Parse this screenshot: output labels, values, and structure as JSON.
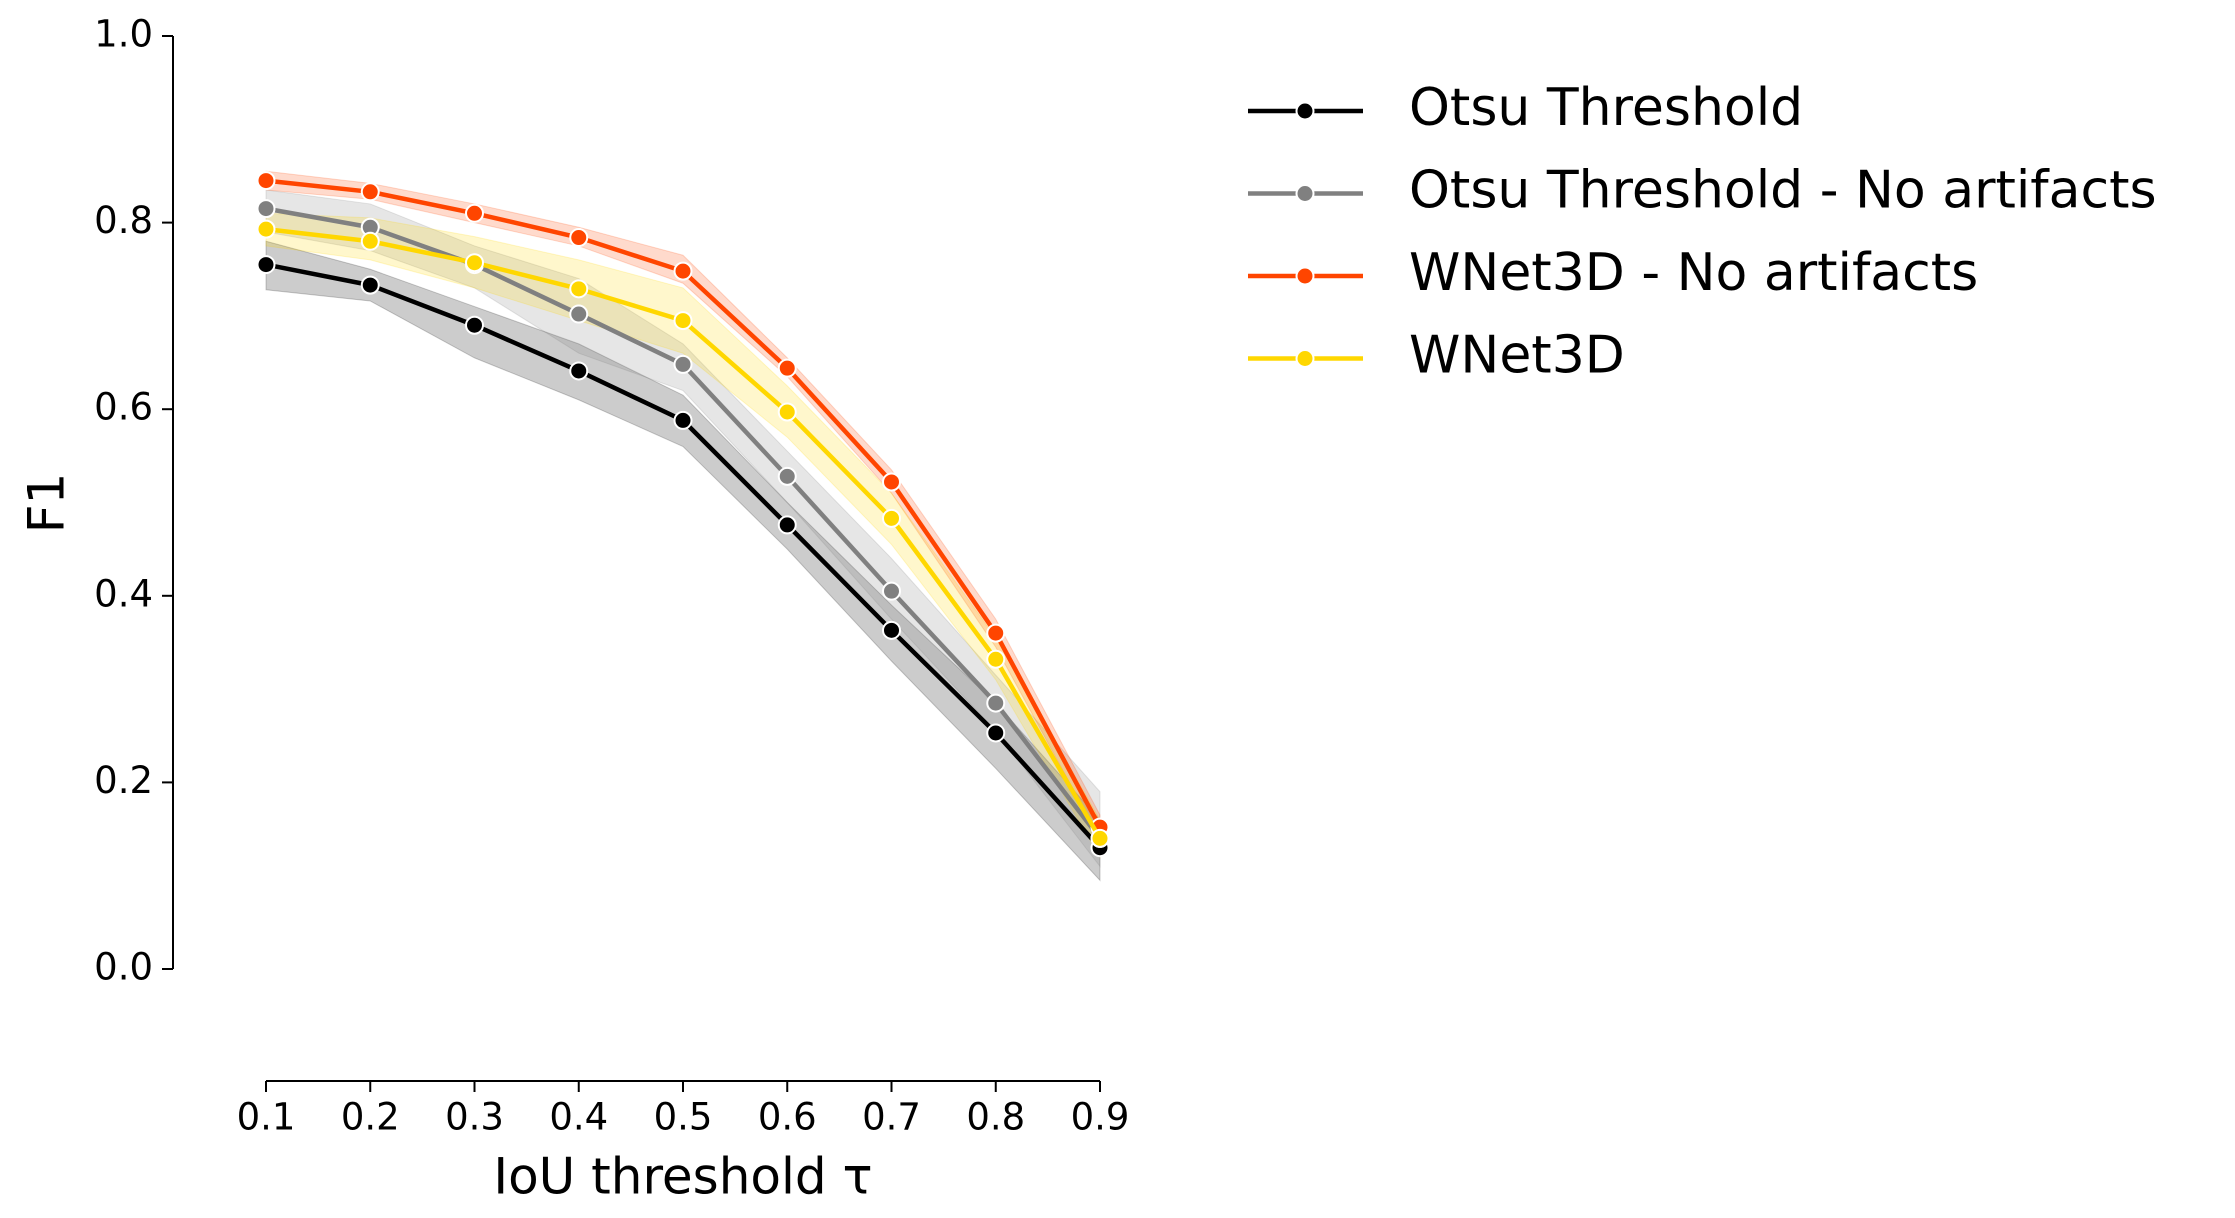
{
  "chart_data": {
    "type": "line",
    "x_label": "IoU threshold τ",
    "y_label": "F1",
    "x": [
      0.1,
      0.2,
      0.3,
      0.4,
      0.5,
      0.6,
      0.7,
      0.8,
      0.9
    ],
    "xlim": [
      0.1,
      0.9
    ],
    "xticks": [
      0.1,
      0.2,
      0.3,
      0.4,
      0.5,
      0.6,
      0.7,
      0.8,
      0.9
    ],
    "ylim": [
      0.0,
      1.0
    ],
    "yticks": [
      {
        "value": 0,
        "label": "0.0"
      },
      0.2,
      0.4,
      0.6,
      0.8,
      {
        "value": 1,
        "label": "1.0"
      }
    ],
    "legend": "outside-right",
    "series": [
      {
        "name": "Otsu Threshold",
        "color": "#000000",
        "values": [
          0.755,
          0.733,
          0.69,
          0.641,
          0.588,
          0.476,
          0.363,
          0.253,
          0.13
        ],
        "lower": [
          0.728,
          0.716,
          0.655,
          0.61,
          0.56,
          0.45,
          0.33,
          0.215,
          0.095
        ],
        "upper": [
          0.78,
          0.75,
          0.71,
          0.67,
          0.615,
          0.5,
          0.39,
          0.285,
          0.16
        ]
      },
      {
        "name": "Otsu Threshold - No artifacts",
        "color": "#808080",
        "values": [
          0.815,
          0.795,
          0.755,
          0.702,
          0.648,
          0.528,
          0.405,
          0.285,
          0.14
        ],
        "lower": [
          0.79,
          0.77,
          0.73,
          0.66,
          0.62,
          0.5,
          0.375,
          0.255,
          0.11
        ],
        "upper": [
          0.835,
          0.82,
          0.775,
          0.74,
          0.67,
          0.555,
          0.44,
          0.315,
          0.19
        ]
      },
      {
        "name": "WNet3D - No artifacts",
        "color": "#ff4500",
        "values": [
          0.845,
          0.833,
          0.81,
          0.784,
          0.748,
          0.644,
          0.522,
          0.36,
          0.152
        ],
        "lower": [
          0.835,
          0.825,
          0.8,
          0.775,
          0.735,
          0.635,
          0.51,
          0.345,
          0.14
        ],
        "upper": [
          0.855,
          0.842,
          0.82,
          0.795,
          0.765,
          0.655,
          0.535,
          0.375,
          0.165
        ]
      },
      {
        "name": "WNet3D",
        "color": "#ffd700",
        "values": [
          0.793,
          0.78,
          0.757,
          0.729,
          0.695,
          0.597,
          0.483,
          0.332,
          0.14
        ],
        "lower": [
          0.775,
          0.76,
          0.73,
          0.695,
          0.66,
          0.57,
          0.455,
          0.31,
          0.12
        ],
        "upper": [
          0.81,
          0.805,
          0.785,
          0.76,
          0.73,
          0.625,
          0.51,
          0.355,
          0.16
        ]
      }
    ]
  }
}
